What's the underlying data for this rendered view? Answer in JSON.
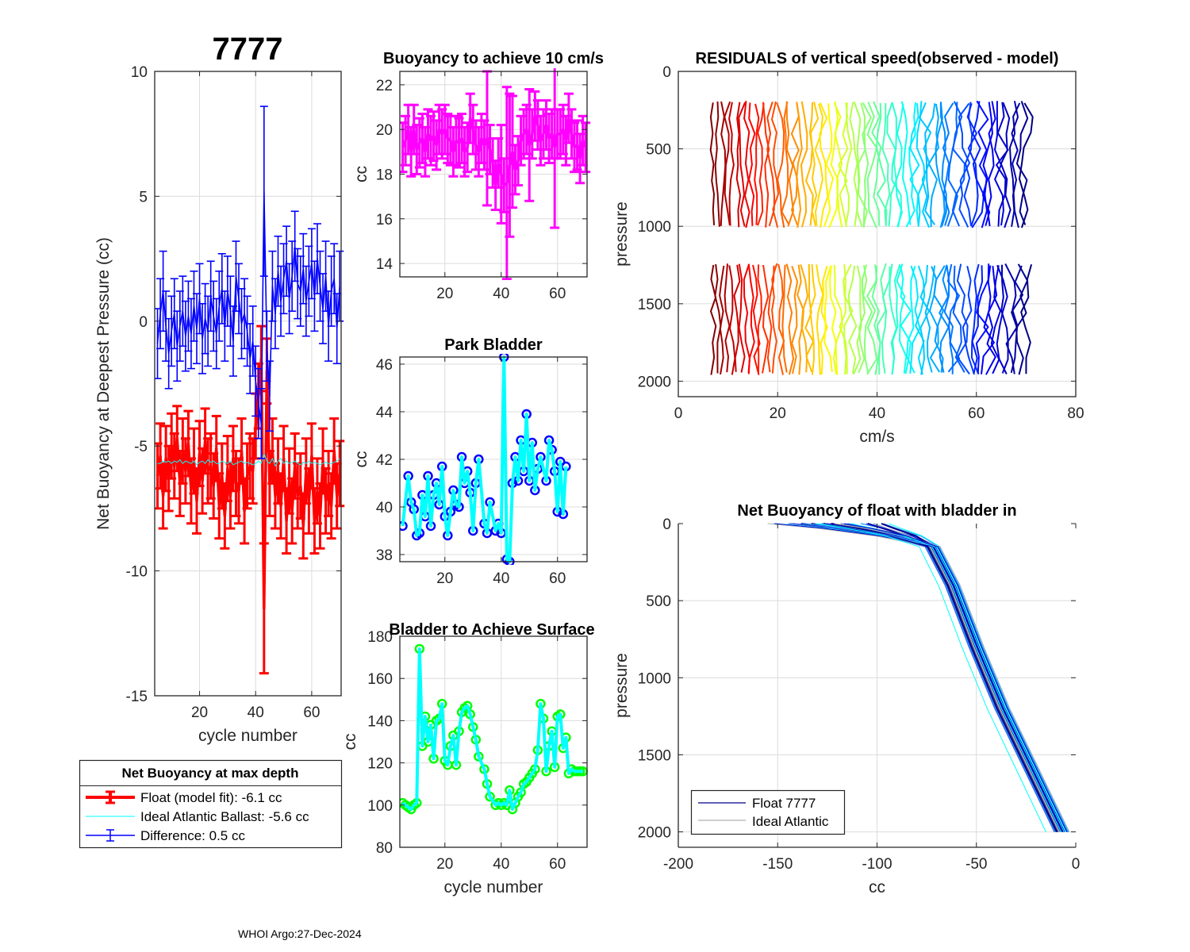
{
  "figure": {
    "main_title": "7777",
    "footer": "WHOI Argo:27-Dec-2024"
  },
  "chart_data": [
    {
      "id": "net-buoyancy",
      "type": "line",
      "title": "7777",
      "xlabel": "cycle number",
      "ylabel": "Net Buoyancy at Deepest Pressure (cc)",
      "xlim": [
        4,
        70.5
      ],
      "ylim": [
        -15,
        10
      ],
      "xticks": [
        20,
        40,
        60
      ],
      "yticks": [
        -15,
        -10,
        -5,
        0,
        5,
        10
      ],
      "grid": true,
      "legend": {
        "title": "Net Buoyancy at max depth",
        "placement": "below",
        "entries": [
          {
            "label": "Float (model fit):  -6.1 cc",
            "color": "#ff0000",
            "style": "errorbar-thick"
          },
          {
            "label": "Ideal Atlantic Ballast:  -5.6 cc",
            "color": "#00ffff",
            "style": "line"
          },
          {
            "label": "Difference:   0.5 cc",
            "color": "#0000ff",
            "style": "errorbar"
          }
        ]
      },
      "x": [
        5,
        6,
        7,
        8,
        9,
        10,
        11,
        12,
        13,
        14,
        15,
        16,
        17,
        18,
        19,
        20,
        21,
        22,
        23,
        24,
        25,
        26,
        27,
        28,
        29,
        30,
        31,
        32,
        33,
        34,
        35,
        36,
        37,
        38,
        39,
        40,
        41,
        42,
        43,
        44,
        45,
        46,
        47,
        48,
        49,
        50,
        51,
        52,
        53,
        54,
        55,
        56,
        57,
        58,
        59,
        60,
        61,
        62,
        63,
        64,
        65,
        66,
        67,
        68,
        69,
        70
      ],
      "series": [
        {
          "name": "Float (model fit)",
          "color": "#ff0000",
          "values": [
            -6.2,
            -5.4,
            -7.0,
            -5.5,
            -6.3,
            -5.0,
            -5.8,
            -4.7,
            -6.5,
            -5.2,
            -6.0,
            -4.9,
            -6.8,
            -5.6,
            -7.2,
            -5.3,
            -6.4,
            -4.8,
            -6.0,
            -5.8,
            -6.6,
            -5.1,
            -7.4,
            -6.2,
            -7.8,
            -5.9,
            -7.0,
            -5.5,
            -6.5,
            -6.8,
            -5.2,
            -7.6,
            -6.2,
            -5.8,
            -6.0,
            -4.2,
            -3.0,
            -1.5,
            -11.5,
            -2.0,
            -6.5,
            -5.2,
            -7.0,
            -6.0,
            -7.4,
            -5.5,
            -8.0,
            -6.4,
            -7.6,
            -5.8,
            -7.0,
            -6.6,
            -8.2,
            -6.0,
            -7.2,
            -5.4,
            -8.0,
            -6.8,
            -7.8,
            -5.6,
            -7.2,
            -6.5,
            -7.4,
            -5.2,
            -7.0,
            -6.1
          ],
          "err": [
            1.3,
            1.3,
            1.3,
            1.3,
            1.3,
            1.3,
            1.3,
            1.3,
            1.3,
            1.3,
            1.3,
            1.3,
            1.3,
            1.3,
            1.3,
            1.3,
            1.3,
            1.3,
            1.3,
            1.3,
            1.3,
            1.3,
            1.3,
            1.3,
            1.3,
            1.3,
            1.3,
            1.3,
            1.3,
            1.3,
            1.3,
            1.3,
            1.3,
            1.3,
            1.3,
            1.3,
            1.3,
            1.3,
            2.6,
            1.3,
            1.3,
            1.3,
            1.3,
            1.3,
            1.3,
            1.3,
            1.3,
            1.3,
            1.3,
            1.3,
            1.3,
            1.3,
            1.3,
            1.3,
            1.3,
            1.3,
            1.3,
            1.3,
            1.3,
            1.3,
            1.3,
            1.3,
            1.3,
            1.3,
            1.3,
            1.3
          ]
        },
        {
          "name": "Ideal Atlantic Ballast",
          "color": "#00ffff",
          "values": [
            -5.7,
            -5.7,
            -5.6,
            -5.65,
            -5.6,
            -5.7,
            -5.6,
            -5.65,
            -5.55,
            -5.7,
            -5.6,
            -5.65,
            -5.7,
            -5.6,
            -5.75,
            -5.65,
            -5.6,
            -5.7,
            -5.55,
            -5.65,
            -5.6,
            -5.7,
            -5.7,
            -5.6,
            -5.65,
            -5.7,
            -5.6,
            -5.75,
            -5.7,
            -5.65,
            -5.6,
            -5.7,
            -5.65,
            -5.7,
            -5.75,
            -5.7,
            -5.6,
            -5.7,
            -5.3,
            -5.6,
            -5.7,
            -5.5,
            -5.8,
            -5.6,
            -5.5,
            -5.7,
            -5.6,
            -5.7,
            -5.65,
            -5.6,
            -5.7,
            -5.75,
            -5.65,
            -5.7,
            -5.6,
            -5.7,
            -5.65,
            -5.7,
            -5.75,
            -5.7,
            -5.65,
            -5.7,
            -5.7,
            -5.65,
            -5.6,
            -5.5
          ]
        },
        {
          "name": "Difference",
          "color": "#0000ff",
          "values": [
            -0.9,
            0.3,
            1.2,
            -0.2,
            -1.3,
            -0.4,
            0.3,
            -1.0,
            -0.2,
            0.4,
            -0.6,
            0.2,
            -0.5,
            0.6,
            -0.3,
            0.9,
            -0.7,
            0.1,
            -0.4,
            1.0,
            0.2,
            -0.5,
            0.6,
            1.3,
            -0.2,
            1.2,
            0.4,
            -0.8,
            1.8,
            0.9,
            -0.1,
            0.3,
            -0.4,
            -1.5,
            -0.8,
            -2.4,
            -3.3,
            -4.1,
            5.2,
            -1.0,
            -3.0,
            1.4,
            0.3,
            2.0,
            0.8,
            1.7,
            2.4,
            0.9,
            1.8,
            3.0,
            1.5,
            1.2,
            2.1,
            0.8,
            1.6,
            2.3,
            1.0,
            2.5,
            1.4,
            0.5,
            1.8,
            -0.2,
            1.2,
            1.7,
            -0.3,
            1.4
          ],
          "err": [
            1.4,
            1.4,
            1.6,
            1.4,
            1.4,
            1.4,
            1.4,
            1.4,
            1.4,
            1.4,
            1.4,
            1.4,
            1.4,
            1.4,
            1.4,
            1.4,
            1.4,
            1.4,
            1.4,
            1.4,
            1.4,
            1.4,
            1.4,
            1.4,
            1.4,
            1.4,
            1.4,
            1.4,
            1.4,
            1.4,
            1.4,
            1.4,
            1.4,
            1.4,
            1.4,
            1.4,
            1.4,
            1.4,
            3.4,
            1.4,
            1.4,
            1.4,
            1.4,
            1.4,
            1.4,
            1.4,
            1.4,
            1.4,
            1.4,
            1.4,
            1.4,
            1.4,
            1.4,
            1.4,
            1.4,
            1.4,
            1.4,
            1.4,
            1.4,
            1.4,
            1.4,
            1.4,
            1.4,
            1.4,
            1.4,
            1.4
          ]
        }
      ]
    },
    {
      "id": "buoyancy-10cms",
      "type": "line",
      "title": "Buoyancy to achieve 10 cm/s",
      "xlabel": "",
      "ylabel": "cc",
      "xlim": [
        4,
        70.5
      ],
      "ylim": [
        13.4,
        22.6
      ],
      "xticks": [
        20,
        40,
        60
      ],
      "yticks": [
        14,
        16,
        18,
        20,
        22
      ],
      "grid": true,
      "x": [
        5,
        6,
        7,
        8,
        9,
        10,
        11,
        12,
        13,
        14,
        15,
        16,
        17,
        18,
        19,
        20,
        21,
        22,
        23,
        24,
        25,
        26,
        27,
        28,
        29,
        30,
        31,
        32,
        33,
        34,
        35,
        36,
        37,
        38,
        39,
        40,
        41,
        42,
        43,
        44,
        45,
        46,
        47,
        48,
        49,
        50,
        51,
        52,
        53,
        54,
        55,
        56,
        57,
        58,
        59,
        60,
        61,
        62,
        63,
        64,
        65,
        66,
        67,
        68,
        69,
        70
      ],
      "series": [
        {
          "name": "Buoyancy",
          "color": "#ff00ff",
          "values": [
            19.2,
            19.5,
            20.0,
            19.0,
            20.0,
            19.1,
            19.4,
            19.6,
            19.0,
            19.8,
            19.5,
            19.7,
            19.3,
            20.0,
            19.8,
            20.0,
            19.6,
            19.5,
            19.0,
            19.5,
            19.4,
            19.6,
            19.0,
            19.2,
            20.5,
            20.0,
            19.3,
            19.0,
            19.6,
            19.3,
            19.6,
            19.1,
            18.5,
            17.5,
            18.5,
            18.0,
            17.5,
            17.6,
            18.4,
            19.0,
            18.2,
            18.6,
            19.5,
            19.8,
            20.0,
            19.3,
            19.8,
            20.6,
            20.2,
            19.5,
            19.8,
            20.2,
            19.6,
            19.8,
            19.2,
            19.8,
            19.8,
            20.0,
            19.5,
            20.5,
            19.8,
            19.2,
            19.3,
            18.7,
            19.5,
            19.2
          ],
          "err": [
            1.1,
            1.1,
            1.1,
            1.1,
            1.1,
            1.1,
            1.1,
            1.1,
            1.1,
            1.1,
            1.1,
            1.1,
            1.1,
            1.1,
            1.1,
            1.1,
            1.1,
            1.1,
            1.1,
            1.1,
            1.1,
            1.1,
            1.1,
            1.1,
            1.1,
            1.1,
            1.1,
            1.1,
            1.1,
            1.1,
            3.0,
            1.1,
            1.1,
            1.1,
            1.1,
            2.2,
            1.2,
            4.3,
            3.2,
            2.5,
            1.1,
            1.1,
            1.1,
            1.1,
            1.1,
            2.5,
            1.1,
            1.1,
            1.1,
            1.1,
            1.1,
            1.1,
            1.1,
            1.1,
            3.6,
            1.1,
            1.1,
            1.1,
            1.1,
            1.1,
            1.1,
            1.1,
            1.1,
            1.1,
            1.1,
            1.1
          ]
        }
      ]
    },
    {
      "id": "park-bladder",
      "type": "line",
      "title": "Park Bladder",
      "xlabel": "",
      "ylabel": "cc",
      "xlim": [
        4,
        70.5
      ],
      "ylim": [
        37.7,
        46.3
      ],
      "xticks": [
        20,
        40,
        60
      ],
      "yticks": [
        38,
        40,
        42,
        44,
        46
      ],
      "grid": true,
      "x": [
        5,
        7,
        8,
        9,
        10,
        11,
        12,
        13,
        14,
        15,
        16,
        17,
        18,
        19,
        20,
        21,
        22,
        23,
        24,
        25,
        26,
        27,
        28,
        29,
        30,
        31,
        32,
        34,
        35,
        36,
        38,
        39,
        40,
        41,
        42,
        43,
        44,
        45,
        46,
        47,
        48,
        49,
        50,
        51,
        52,
        53,
        54,
        56,
        57,
        58,
        59,
        60,
        61,
        62,
        63,
        64,
        65,
        66,
        67,
        68,
        69
      ],
      "series": [
        {
          "name": "Park Bladder",
          "color": "#00ffff",
          "marker_color": "#0000ff",
          "values": [
            39.2,
            41.3,
            40.2,
            39.9,
            38.8,
            38.9,
            40.5,
            39.6,
            41.3,
            39.2,
            40.5,
            41.0,
            40.1,
            41.7,
            39.6,
            38.8,
            39.8,
            40.7,
            40.1,
            40.0,
            42.1,
            41.0,
            41.5,
            40.6,
            39.0,
            41.0,
            42.0,
            39.3,
            38.9,
            40.2,
            39.0,
            39.3,
            38.9,
            46.3,
            37.8,
            37.7,
            41.0,
            42.1,
            41.1,
            42.8,
            41.5,
            43.9,
            41.1,
            42.7,
            40.7,
            41.6,
            42.1,
            41.1,
            42.8,
            42.4,
            41.5,
            39.8,
            41.9,
            39.7,
            41.7
          ]
        }
      ]
    },
    {
      "id": "bladder-surface",
      "type": "line",
      "title": "Bladder to Achieve Surface",
      "xlabel": "cycle number",
      "ylabel": "cc",
      "xlim": [
        4,
        70.5
      ],
      "ylim": [
        80,
        180
      ],
      "xticks": [
        20,
        40,
        60
      ],
      "yticks": [
        80,
        100,
        120,
        140,
        160,
        180
      ],
      "grid": true,
      "x": [
        5,
        6,
        7,
        8,
        9,
        10,
        11,
        12,
        13,
        14,
        15,
        16,
        17,
        18,
        19,
        20,
        21,
        22,
        23,
        24,
        25,
        26,
        27,
        28,
        29,
        30,
        31,
        32,
        34,
        35,
        36,
        38,
        39,
        40,
        41,
        42,
        43,
        44,
        45,
        46,
        47,
        48,
        49,
        50,
        51,
        52,
        53,
        54,
        55,
        56,
        57,
        58,
        59,
        60,
        61,
        62,
        63,
        64,
        65,
        66,
        67,
        68,
        69
      ],
      "series": [
        {
          "name": "Bladder",
          "color": "#00ffff",
          "marker_color": "#00ff00",
          "values": [
            101,
            100,
            99,
            98,
            100,
            101,
            174,
            128,
            142,
            130,
            138,
            122,
            140,
            141,
            148,
            121,
            119,
            128,
            133,
            119,
            135,
            144,
            146,
            147,
            143,
            137,
            131,
            123,
            117,
            110,
            104,
            100,
            101,
            100,
            101,
            100,
            107,
            98,
            101,
            104,
            106,
            110,
            111,
            113,
            115,
            117,
            126,
            148,
            141,
            116,
            128,
            135,
            118,
            142,
            143,
            127,
            132,
            115,
            117,
            116,
            116,
            116,
            116
          ]
        }
      ]
    },
    {
      "id": "residuals",
      "type": "line",
      "title": "RESIDUALS of vertical speed(observed - model)",
      "xlabel": "cm/s",
      "ylabel": "pressure",
      "xlim": [
        0,
        80
      ],
      "ylim": [
        2100,
        0
      ],
      "xticks": [
        0,
        20,
        40,
        60,
        80
      ],
      "yticks": [
        0,
        500,
        1000,
        1500,
        2000
      ],
      "grid": true,
      "colormap": "jet",
      "profiles_count": 66,
      "offset_start_cms": 7,
      "offset_end_cms": 70,
      "segments": [
        {
          "pressure_range": [
            200,
            1000
          ]
        },
        {
          "pressure_range": [
            1250,
            2000
          ]
        }
      ]
    },
    {
      "id": "net-buoyancy-bladder-in",
      "type": "line",
      "title": "Net Buoyancy of float with bladder in",
      "xlabel": "cc",
      "ylabel": "pressure",
      "xlim": [
        -200,
        0
      ],
      "ylim": [
        2100,
        0
      ],
      "xticks": [
        -200,
        -150,
        -100,
        -50,
        0
      ],
      "yticks": [
        0,
        500,
        1000,
        1500,
        2000
      ],
      "grid": true,
      "legend": {
        "placement": "bottom-left",
        "entries": [
          {
            "label": "Float 7777",
            "color": "#00008b"
          },
          {
            "label": "Ideal Atlantic",
            "color": "#b0b0b0"
          }
        ]
      },
      "profile_shape": {
        "pressure": [
          0,
          30,
          80,
          150,
          200,
          400,
          800,
          1200,
          1600,
          2000
        ],
        "cc": [
          -125,
          -110,
          -90,
          -72,
          -70,
          -62,
          -50,
          -37,
          -22,
          -7
        ]
      }
    }
  ]
}
